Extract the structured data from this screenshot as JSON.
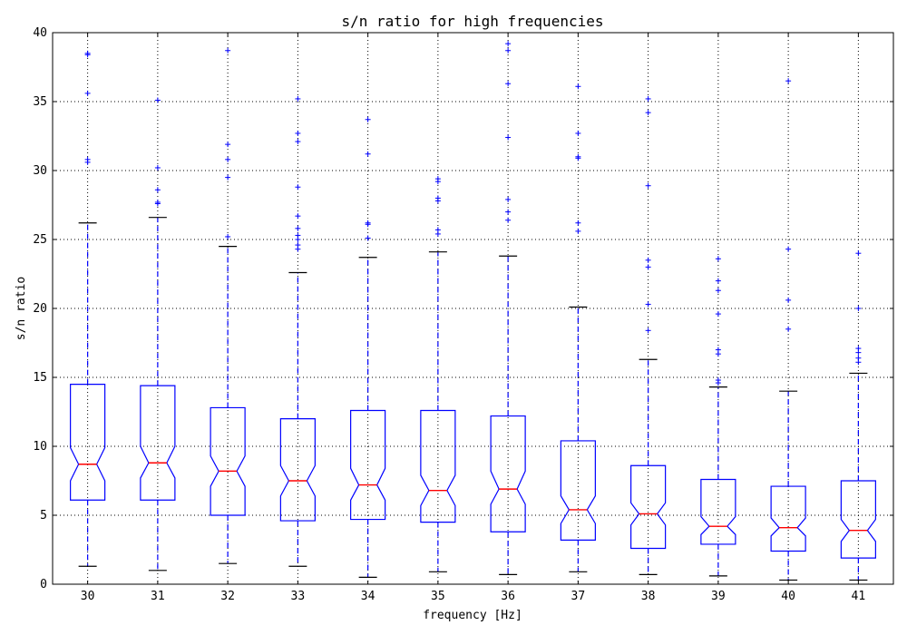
{
  "chart_data": {
    "type": "boxplot",
    "title": "s/n ratio for high frequencies",
    "xlabel": "frequency [Hz]",
    "ylabel": "s/n ratio",
    "ylim": [
      0,
      40
    ],
    "yticks": [
      0,
      5,
      10,
      15,
      20,
      25,
      30,
      35,
      40
    ],
    "grid": true,
    "notched": true,
    "categories": [
      "30",
      "31",
      "32",
      "33",
      "34",
      "35",
      "36",
      "37",
      "38",
      "39",
      "40",
      "41"
    ],
    "boxes": [
      {
        "category": "30",
        "whislo": 1.3,
        "q1": 6.1,
        "notch_lo": 7.5,
        "median": 8.7,
        "notch_hi": 9.9,
        "q3": 14.5,
        "whishi": 26.2,
        "fliers": [
          38.4,
          38.5,
          35.6,
          30.8,
          30.6
        ]
      },
      {
        "category": "31",
        "whislo": 1.0,
        "q1": 6.1,
        "notch_lo": 7.7,
        "median": 8.8,
        "notch_hi": 10.0,
        "q3": 14.4,
        "whishi": 26.6,
        "fliers": [
          35.1,
          30.2,
          28.6,
          27.7,
          27.6
        ]
      },
      {
        "category": "32",
        "whislo": 1.5,
        "q1": 5.0,
        "notch_lo": 7.1,
        "median": 8.2,
        "notch_hi": 9.3,
        "q3": 12.8,
        "whishi": 24.5,
        "fliers": [
          38.7,
          31.9,
          30.8,
          29.5,
          25.2
        ]
      },
      {
        "category": "33",
        "whislo": 1.3,
        "q1": 4.6,
        "notch_lo": 6.4,
        "median": 7.5,
        "notch_hi": 8.6,
        "q3": 12.0,
        "whishi": 22.6,
        "fliers": [
          35.2,
          32.7,
          32.1,
          28.8,
          26.7,
          25.8,
          25.3,
          25.0,
          24.6,
          24.3
        ]
      },
      {
        "category": "34",
        "whislo": 0.5,
        "q1": 4.7,
        "notch_lo": 6.1,
        "median": 7.2,
        "notch_hi": 8.4,
        "q3": 12.6,
        "whishi": 23.7,
        "fliers": [
          33.7,
          31.2,
          26.2,
          26.1,
          25.1
        ]
      },
      {
        "category": "35",
        "whislo": 0.9,
        "q1": 4.5,
        "notch_lo": 5.7,
        "median": 6.8,
        "notch_hi": 7.9,
        "q3": 12.6,
        "whishi": 24.1,
        "fliers": [
          29.4,
          29.2,
          28.0,
          27.8,
          25.7,
          25.4
        ]
      },
      {
        "category": "36",
        "whislo": 0.7,
        "q1": 3.8,
        "notch_lo": 5.8,
        "median": 6.9,
        "notch_hi": 8.2,
        "q3": 12.2,
        "whishi": 23.8,
        "fliers": [
          39.2,
          38.7,
          36.3,
          32.4,
          27.9,
          27.0,
          26.4
        ]
      },
      {
        "category": "37",
        "whislo": 0.9,
        "q1": 3.2,
        "notch_lo": 4.4,
        "median": 5.4,
        "notch_hi": 6.4,
        "q3": 10.4,
        "whishi": 20.1,
        "fliers": [
          36.1,
          32.7,
          31.0,
          30.9,
          26.2,
          25.6
        ]
      },
      {
        "category": "38",
        "whislo": 0.7,
        "q1": 2.6,
        "notch_lo": 4.3,
        "median": 5.1,
        "notch_hi": 5.9,
        "q3": 8.6,
        "whishi": 16.3,
        "fliers": [
          35.2,
          34.2,
          28.9,
          23.5,
          23.0,
          20.3,
          18.4
        ]
      },
      {
        "category": "39",
        "whislo": 0.6,
        "q1": 2.9,
        "notch_lo": 3.6,
        "median": 4.2,
        "notch_hi": 4.9,
        "q3": 7.6,
        "whishi": 14.3,
        "fliers": [
          23.6,
          22.0,
          21.3,
          19.6,
          17.0,
          16.7,
          14.8,
          14.6
        ]
      },
      {
        "category": "40",
        "whislo": 0.3,
        "q1": 2.4,
        "notch_lo": 3.5,
        "median": 4.1,
        "notch_hi": 4.8,
        "q3": 7.1,
        "whishi": 14.0,
        "fliers": [
          36.5,
          24.3,
          20.6,
          18.5
        ]
      },
      {
        "category": "41",
        "whislo": 0.3,
        "q1": 1.9,
        "notch_lo": 3.1,
        "median": 3.9,
        "notch_hi": 4.7,
        "q3": 7.5,
        "whishi": 15.3,
        "fliers": [
          24.0,
          20.0,
          17.1,
          16.8,
          16.4,
          16.1
        ]
      }
    ],
    "colors": {
      "box": "#0000ff",
      "median": "#ff0000",
      "whisker": "#0000ff",
      "cap": "#000000",
      "flier": "#0000ff",
      "grid": "#000000"
    }
  }
}
